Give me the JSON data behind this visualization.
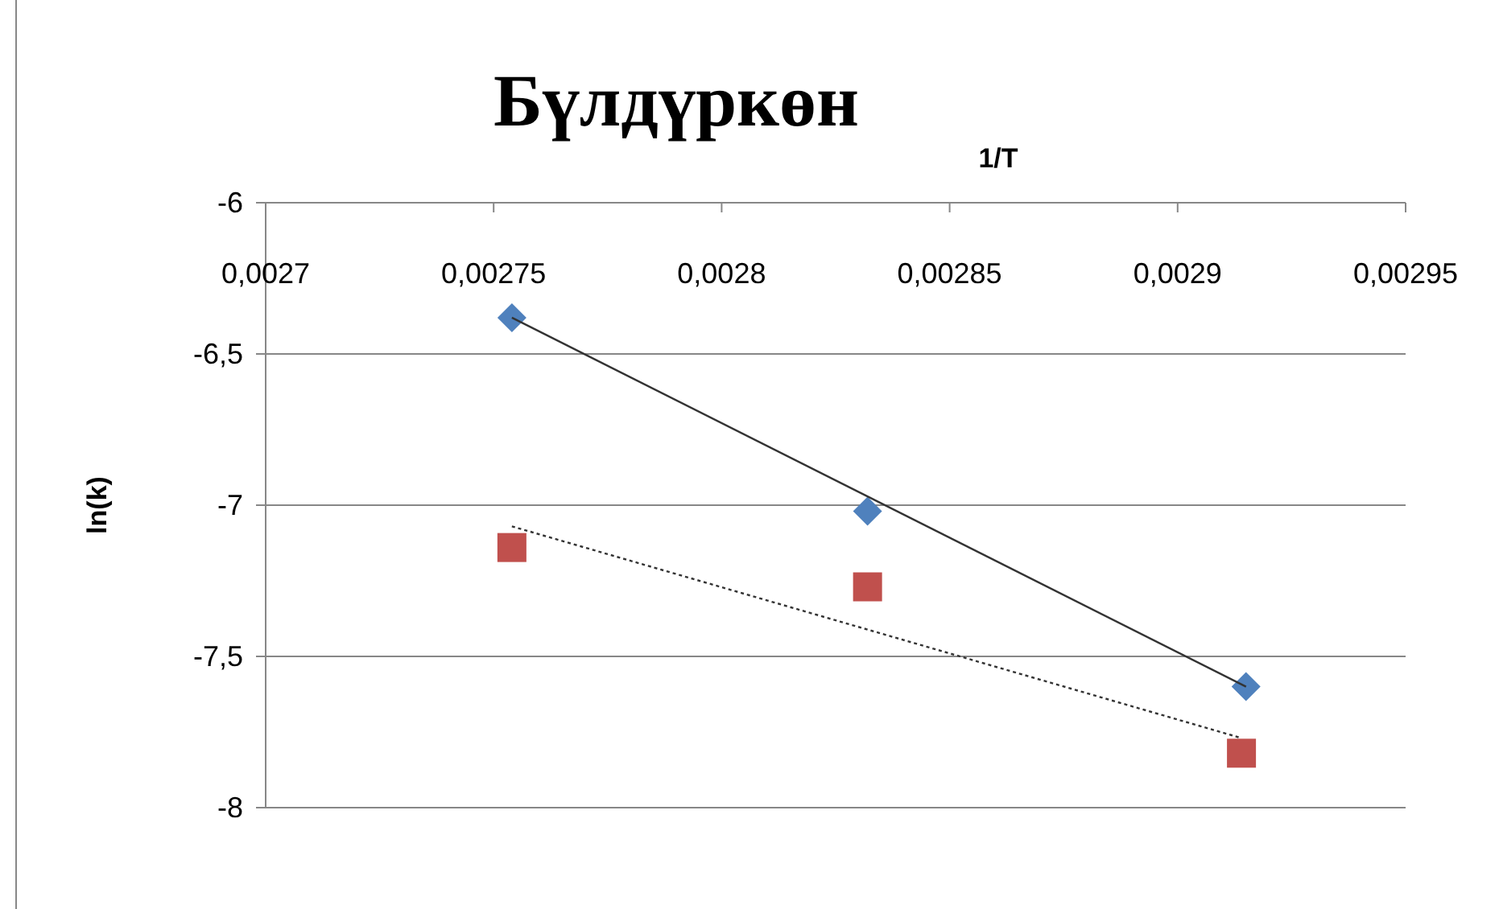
{
  "chart_data": {
    "type": "scatter",
    "title": "Бүлдүркөн",
    "xlabel": "1/T",
    "ylabel": "ln(k)",
    "series": [
      {
        "marker": "diamond",
        "color": "#4f81bd",
        "x": [
          0.002754,
          0.002832,
          0.002915
        ],
        "values": [
          -6.38,
          -7.02,
          -7.6
        ]
      },
      {
        "marker": "square",
        "color": "#c0504d",
        "x": [
          0.002754,
          0.002832,
          0.002914
        ],
        "values": [
          -7.14,
          -7.27,
          -7.82
        ]
      },
      {
        "type": "line",
        "line_style": "solid",
        "color": "#333333",
        "x": [
          0.002754,
          0.002915
        ],
        "values": [
          -6.38,
          -7.6
        ]
      },
      {
        "type": "line",
        "line_style": "dotted",
        "color": "#333333",
        "x": [
          0.002754,
          0.002914
        ],
        "values": [
          -7.07,
          -7.77
        ]
      }
    ],
    "xlim": [
      0.0027,
      0.00295
    ],
    "xticks": [
      {
        "value": 0.0027,
        "label": "0,0027"
      },
      {
        "value": 0.00275,
        "label": "0,00275"
      },
      {
        "value": 0.0028,
        "label": "0,0028"
      },
      {
        "value": 0.00285,
        "label": "0,00285"
      },
      {
        "value": 0.0029,
        "label": "0,0029"
      },
      {
        "value": 0.00295,
        "label": "0,00295"
      }
    ],
    "ylim": [
      -8,
      -6
    ],
    "yticks": [
      {
        "value": -8,
        "label": "-8"
      },
      {
        "value": -7.5,
        "label": "-7,5"
      },
      {
        "value": -7,
        "label": "-7"
      },
      {
        "value": -6.5,
        "label": "-6,5"
      },
      {
        "value": -6,
        "label": "-6"
      }
    ],
    "grid": "y"
  }
}
